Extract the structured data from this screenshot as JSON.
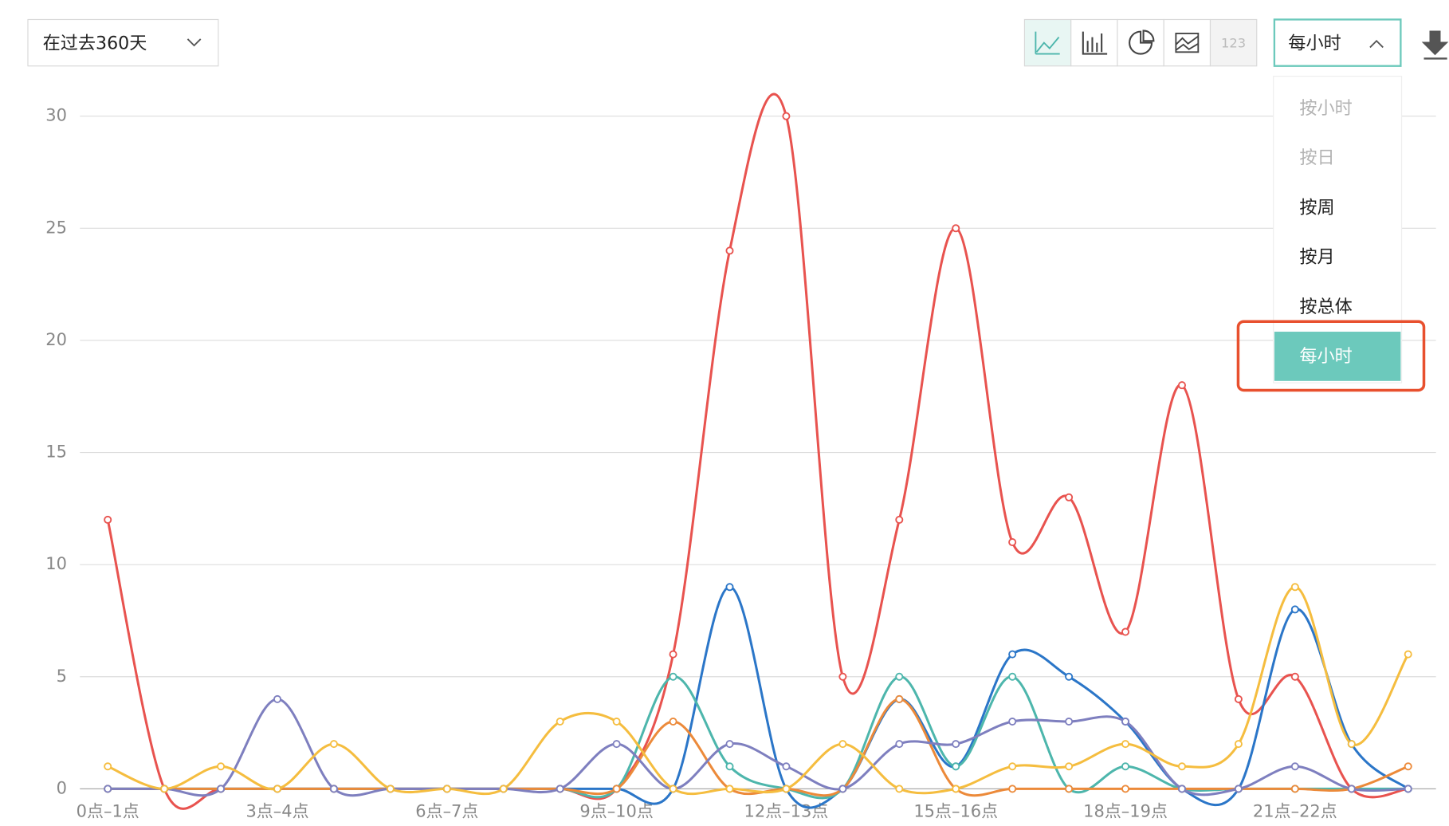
{
  "ui": {
    "range_select": "在过去360天",
    "count_button": "123",
    "granularity_select": "每小时",
    "menu": [
      "按小时",
      "按日",
      "按周",
      "按月",
      "按总体",
      "每小时"
    ]
  },
  "chart_data": {
    "type": "line",
    "categories": [
      "0点–1点",
      null,
      null,
      "3点–4点",
      null,
      null,
      "6点–7点",
      null,
      null,
      "9点–10点",
      null,
      null,
      "12点–13点",
      null,
      null,
      "15点–16点",
      null,
      null,
      "18点–19点",
      null,
      null,
      "21点–22点",
      null,
      null
    ],
    "series": [
      {
        "color": "#e8534f",
        "values": [
          12,
          0,
          0,
          0,
          0,
          0,
          0,
          0,
          0,
          0,
          6,
          24,
          30,
          5,
          12,
          25,
          11,
          13,
          7,
          18,
          4,
          5,
          0,
          0
        ]
      },
      {
        "color": "#2b76c8",
        "values": [
          0,
          0,
          0,
          0,
          0,
          0,
          0,
          0,
          0,
          0,
          0,
          9,
          0,
          0,
          4,
          1,
          6,
          5,
          3,
          0,
          0,
          8,
          2,
          0
        ]
      },
      {
        "color": "#4db6ac",
        "values": [
          0,
          0,
          0,
          0,
          0,
          0,
          0,
          0,
          0,
          0,
          5,
          1,
          0,
          0,
          5,
          1,
          5,
          0,
          1,
          0,
          0,
          0,
          0,
          0
        ]
      },
      {
        "color": "#ec8a3a",
        "values": [
          0,
          0,
          0,
          0,
          0,
          0,
          0,
          0,
          0,
          0,
          3,
          0,
          0,
          0,
          4,
          0,
          0,
          0,
          0,
          0,
          0,
          0,
          0,
          1
        ]
      },
      {
        "color": "#7e7fbf",
        "values": [
          0,
          0,
          0,
          4,
          0,
          0,
          0,
          0,
          0,
          2,
          0,
          2,
          1,
          0,
          2,
          2,
          3,
          3,
          3,
          0,
          0,
          1,
          0,
          0
        ]
      },
      {
        "color": "#f5bd3f",
        "values": [
          1,
          0,
          1,
          0,
          2,
          0,
          0,
          0,
          3,
          3,
          0,
          0,
          0,
          2,
          0,
          0,
          1,
          1,
          2,
          1,
          2,
          9,
          2,
          6
        ]
      }
    ],
    "ylim": [
      0,
      30
    ],
    "yticks": [
      0,
      5,
      10,
      15,
      20,
      25,
      30
    ],
    "grid": true
  }
}
